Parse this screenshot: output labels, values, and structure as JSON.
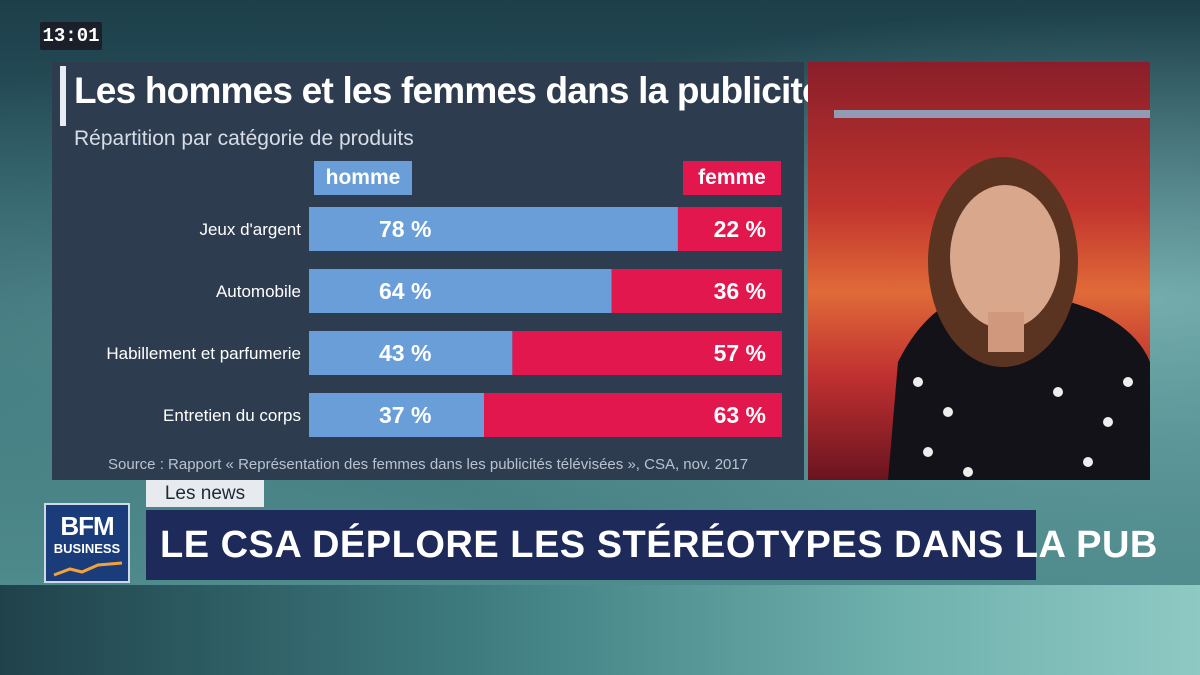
{
  "clock": "13:01",
  "chart": {
    "title": "Les hommes et les femmes dans la publicité",
    "subtitle": "Répartition par catégorie de produits",
    "legend_homme": "homme",
    "legend_femme": "femme",
    "source": "Source : Rapport « Représentation des femmes dans les publicités télévisées », CSA, nov. 2017"
  },
  "chart_data": {
    "type": "bar",
    "orientation": "horizontal-stacked",
    "categories": [
      "Jeux d'argent",
      "Automobile",
      "Habillement et parfumerie",
      "Entretien du corps"
    ],
    "series": [
      {
        "name": "homme",
        "values": [
          78,
          64,
          43,
          37
        ],
        "labels": [
          "78 %",
          "64 %",
          "43 %",
          "37 %"
        ],
        "color": "#6a9ed8"
      },
      {
        "name": "femme",
        "values": [
          22,
          36,
          57,
          63
        ],
        "labels": [
          "22 %",
          "36 %",
          "57 %",
          "63 %"
        ],
        "color": "#e2174e"
      }
    ],
    "xlim": [
      0,
      100
    ]
  },
  "ticker": {
    "label": "Les news",
    "headline": "LE CSA DÉPLORE LES STÉRÉOTYPES DANS LA PUB"
  },
  "logo": {
    "line1": "BFM",
    "line2": "BUSINESS"
  },
  "colors": {
    "homme": "#6a9ed8",
    "femme": "#e2174e",
    "panel": "#2e3c50",
    "headline_bg": "#1e2a5a"
  }
}
